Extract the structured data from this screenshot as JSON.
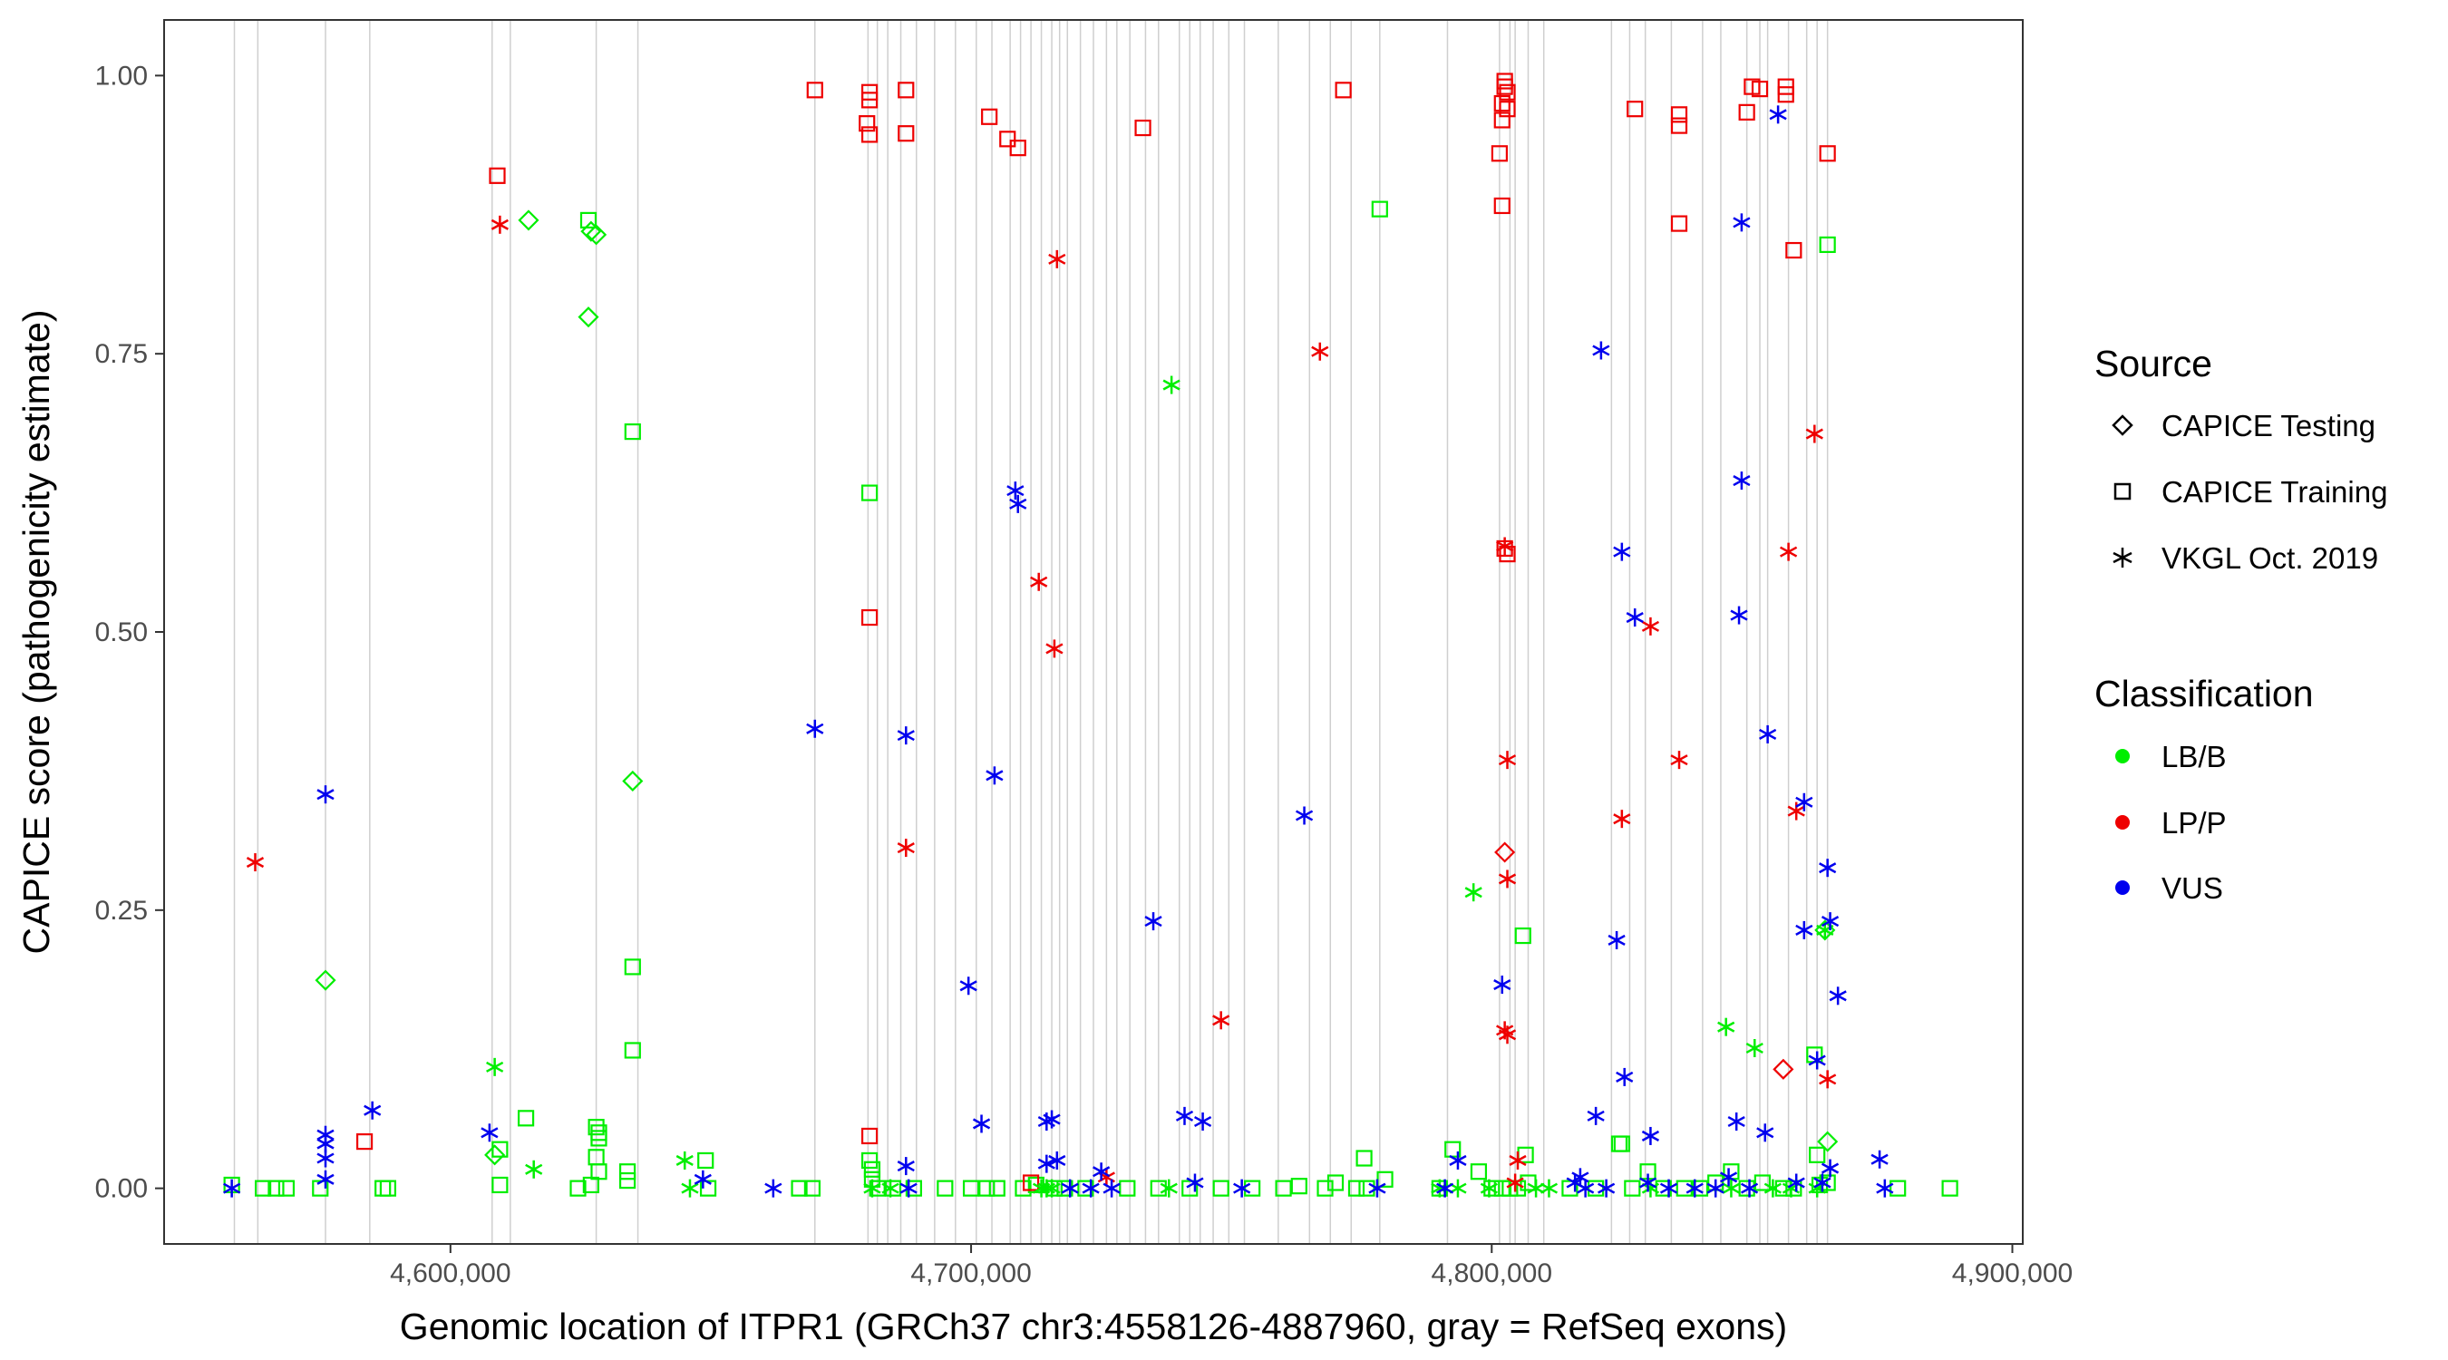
{
  "chart_data": {
    "type": "scatter",
    "title": "",
    "xlabel": "Genomic location of ITPR1 (GRCh37 chr3:4558126-4887960, gray = RefSeq exons)",
    "ylabel": "CAPICE score (pathogenicity estimate)",
    "xlim": [
      4545000,
      4902000
    ],
    "ylim": [
      -0.05,
      1.05
    ],
    "x_ticks": [
      4600000,
      4700000,
      4800000,
      4900000
    ],
    "x_tick_labels": [
      "4,600,000",
      "4,700,000",
      "4,800,000",
      "4,900,000"
    ],
    "y_ticks": [
      0,
      0.25,
      0.5,
      0.75,
      1
    ],
    "y_tick_labels": [
      "0.00",
      "0.25",
      "0.50",
      "0.75",
      "1.00"
    ],
    "grid": false,
    "legend_position": "right",
    "exons": [
      4558500,
      4563000,
      4576000,
      4584500,
      4608000,
      4611500,
      4628000,
      4636000,
      4670000,
      4680200,
      4682000,
      4684000,
      4686500,
      4689500,
      4693000,
      4697000,
      4701000,
      4704000,
      4707500,
      4709500,
      4711500,
      4713500,
      4715500,
      4717000,
      4718500,
      4721000,
      4723500,
      4726000,
      4728000,
      4730500,
      4733500,
      4736000,
      4740000,
      4742000,
      4744000,
      4746500,
      4749500,
      4752500,
      4759000,
      4765000,
      4769000,
      4773000,
      4778500,
      4791500,
      4801500,
      4803500,
      4804500,
      4807000,
      4810000,
      4823000,
      4826500,
      4829500,
      4834500,
      4840500,
      4844000,
      4849000,
      4851500,
      4853000,
      4857000,
      4860500,
      4862500,
      4864500
    ],
    "legend": {
      "source_title": "Source",
      "source_items": [
        {
          "label": "CAPICE Testing",
          "shape": "diamond"
        },
        {
          "label": "CAPICE Training",
          "shape": "square"
        },
        {
          "label": "VKGL Oct. 2019",
          "shape": "asterisk"
        }
      ],
      "class_title": "Classification",
      "class_items": [
        {
          "label": "LB/B",
          "color": "#00ee00"
        },
        {
          "label": "LP/P",
          "color": "#ee0000"
        },
        {
          "label": "VUS",
          "color": "#0000ee"
        }
      ]
    },
    "series": [
      {
        "name": "CAPICE Testing",
        "classification": "LB/B",
        "shape": "diamond",
        "color": "#00ee00",
        "points": [
          [
            4576000,
            0.187
          ],
          [
            4608500,
            0.03
          ],
          [
            4615000,
            0.87
          ],
          [
            4626500,
            0.783
          ],
          [
            4627000,
            0.86
          ],
          [
            4628000,
            0.857
          ],
          [
            4635000,
            0.366
          ],
          [
            4864500,
            0.042
          ],
          [
            4864000,
            0.232
          ]
        ]
      },
      {
        "name": "CAPICE Testing",
        "classification": "LP/P",
        "shape": "diamond",
        "color": "#ee0000",
        "points": [
          [
            4802500,
            0.302
          ],
          [
            4856000,
            0.107
          ]
        ]
      },
      {
        "name": "CAPICE Training",
        "classification": "LB/B",
        "shape": "square",
        "color": "#00ee00",
        "points": [
          [
            4558000,
            0.003
          ],
          [
            4564000,
            0
          ],
          [
            4566500,
            0
          ],
          [
            4568500,
            0
          ],
          [
            4575000,
            0
          ],
          [
            4587000,
            0
          ],
          [
            4588000,
            0
          ],
          [
            4609500,
            0.035
          ],
          [
            4609500,
            0.003
          ],
          [
            4614500,
            0.063
          ],
          [
            4624500,
            0
          ],
          [
            4626500,
            0.87
          ],
          [
            4627000,
            0.003
          ],
          [
            4628000,
            0.055
          ],
          [
            4628500,
            0.05
          ],
          [
            4628500,
            0.045
          ],
          [
            4628000,
            0.028
          ],
          [
            4628500,
            0.015
          ],
          [
            4634000,
            0.015
          ],
          [
            4634000,
            0.007
          ],
          [
            4635000,
            0.68
          ],
          [
            4635000,
            0.199
          ],
          [
            4635000,
            0.124
          ],
          [
            4649000,
            0.025
          ],
          [
            4649500,
            0
          ],
          [
            4667000,
            0
          ],
          [
            4669500,
            0
          ],
          [
            4680500,
            0.625
          ],
          [
            4680500,
            0.025
          ],
          [
            4681000,
            0.017
          ],
          [
            4681000,
            0.008
          ],
          [
            4682000,
            0
          ],
          [
            4685000,
            0
          ],
          [
            4689000,
            0
          ],
          [
            4695000,
            0
          ],
          [
            4700000,
            0
          ],
          [
            4703000,
            0
          ],
          [
            4705000,
            0
          ],
          [
            4710000,
            0
          ],
          [
            4712500,
            0.003
          ],
          [
            4716000,
            0
          ],
          [
            4718000,
            0
          ],
          [
            4722000,
            0
          ],
          [
            4730000,
            0
          ],
          [
            4736000,
            0
          ],
          [
            4742000,
            0
          ],
          [
            4748000,
            0
          ],
          [
            4754000,
            0
          ],
          [
            4760000,
            0
          ],
          [
            4763000,
            0.002
          ],
          [
            4768000,
            0
          ],
          [
            4770000,
            0.005
          ],
          [
            4774000,
            0
          ],
          [
            4775500,
            0.027
          ],
          [
            4776000,
            0
          ],
          [
            4779500,
            0.008
          ],
          [
            4778500,
            0.88
          ],
          [
            4790000,
            0
          ],
          [
            4792500,
            0.035
          ],
          [
            4797500,
            0.015
          ],
          [
            4800000,
            0
          ],
          [
            4802000,
            0
          ],
          [
            4803500,
            0
          ],
          [
            4805000,
            0
          ],
          [
            4806000,
            0.227
          ],
          [
            4806500,
            0.03
          ],
          [
            4807000,
            0.005
          ],
          [
            4815000,
            0
          ],
          [
            4820000,
            0
          ],
          [
            4824500,
            0.04
          ],
          [
            4825000,
            0.04
          ],
          [
            4827000,
            0
          ],
          [
            4830000,
            0.015
          ],
          [
            4833000,
            0
          ],
          [
            4837000,
            0
          ],
          [
            4840000,
            0
          ],
          [
            4843000,
            0.005
          ],
          [
            4846000,
            0.015
          ],
          [
            4849000,
            0
          ],
          [
            4852000,
            0.005
          ],
          [
            4856000,
            0
          ],
          [
            4858000,
            0
          ],
          [
            4862000,
            0.12
          ],
          [
            4862500,
            0.03
          ],
          [
            4863000,
            0.003
          ],
          [
            4864500,
            0.848
          ],
          [
            4864500,
            0.005
          ],
          [
            4878000,
            0
          ],
          [
            4888000,
            0
          ]
        ]
      },
      {
        "name": "CAPICE Training",
        "classification": "LP/P",
        "shape": "square",
        "color": "#ee0000",
        "points": [
          [
            4609000,
            0.91
          ],
          [
            4583500,
            0.042
          ],
          [
            4670000,
            0.987
          ],
          [
            4680500,
            0.985
          ],
          [
            4680500,
            0.978
          ],
          [
            4680000,
            0.957
          ],
          [
            4680500,
            0.947
          ],
          [
            4680500,
            0.513
          ],
          [
            4680500,
            0.047
          ],
          [
            4687500,
            0.987
          ],
          [
            4687500,
            0.948
          ],
          [
            4703500,
            0.963
          ],
          [
            4707000,
            0.943
          ],
          [
            4709000,
            0.935
          ],
          [
            4711500,
            0.005
          ],
          [
            4733000,
            0.953
          ],
          [
            4771500,
            0.987
          ],
          [
            4802500,
            0.995
          ],
          [
            4802500,
            0.99
          ],
          [
            4803000,
            0.985
          ],
          [
            4802000,
            0.975
          ],
          [
            4803000,
            0.97
          ],
          [
            4802000,
            0.96
          ],
          [
            4801500,
            0.93
          ],
          [
            4802000,
            0.883
          ],
          [
            4802500,
            0.575
          ],
          [
            4803000,
            0.57
          ],
          [
            4827500,
            0.97
          ],
          [
            4836000,
            0.965
          ],
          [
            4836000,
            0.955
          ],
          [
            4836000,
            0.867
          ],
          [
            4849000,
            0.967
          ],
          [
            4850000,
            0.99
          ],
          [
            4851500,
            0.988
          ],
          [
            4856500,
            0.99
          ],
          [
            4856500,
            0.983
          ],
          [
            4858000,
            0.843
          ],
          [
            4864500,
            0.93
          ]
        ]
      },
      {
        "name": "VKGL Oct. 2019",
        "classification": "LB/B",
        "shape": "asterisk",
        "color": "#00ee00",
        "points": [
          [
            4608500,
            0.109
          ],
          [
            4616000,
            0.017
          ],
          [
            4645000,
            0.025
          ],
          [
            4646000,
            0
          ],
          [
            4681000,
            0
          ],
          [
            4684500,
            0
          ],
          [
            4713500,
            0
          ],
          [
            4714500,
            0
          ],
          [
            4715500,
            0
          ],
          [
            4738500,
            0.722
          ],
          [
            4738000,
            0
          ],
          [
            4790000,
            0
          ],
          [
            4793500,
            0
          ],
          [
            4796500,
            0.266
          ],
          [
            4799500,
            0
          ],
          [
            4808500,
            0
          ],
          [
            4811000,
            0
          ],
          [
            4830500,
            0
          ],
          [
            4845000,
            0.145
          ],
          [
            4846000,
            0
          ],
          [
            4850500,
            0.126
          ],
          [
            4854000,
            0
          ],
          [
            4857500,
            0
          ],
          [
            4862500,
            0
          ],
          [
            4864000,
            0.232
          ]
        ]
      },
      {
        "name": "VKGL Oct. 2019",
        "classification": "LP/P",
        "shape": "asterisk",
        "color": "#ee0000",
        "points": [
          [
            4562500,
            0.293
          ],
          [
            4609500,
            0.866
          ],
          [
            4687500,
            0.306
          ],
          [
            4713000,
            0.545
          ],
          [
            4716500,
            0.835
          ],
          [
            4716000,
            0.485
          ],
          [
            4726000,
            0.01
          ],
          [
            4748000,
            0.151
          ],
          [
            4767000,
            0.752
          ],
          [
            4802500,
            0.577
          ],
          [
            4803000,
            0.385
          ],
          [
            4803000,
            0.278
          ],
          [
            4802500,
            0.142
          ],
          [
            4803000,
            0.138
          ],
          [
            4805000,
            0.025
          ],
          [
            4804500,
            0.005
          ],
          [
            4825000,
            0.332
          ],
          [
            4830500,
            0.505
          ],
          [
            4836000,
            0.385
          ],
          [
            4857000,
            0.572
          ],
          [
            4858500,
            0.339
          ],
          [
            4862000,
            0.678
          ],
          [
            4864500,
            0.098
          ]
        ]
      },
      {
        "name": "VKGL Oct. 2019",
        "classification": "VUS",
        "shape": "asterisk",
        "color": "#0000ee",
        "points": [
          [
            4558000,
            0
          ],
          [
            4576000,
            0.354
          ],
          [
            4576000,
            0.048
          ],
          [
            4576000,
            0.04
          ],
          [
            4576000,
            0.027
          ],
          [
            4576000,
            0.008
          ],
          [
            4585000,
            0.07
          ],
          [
            4607500,
            0.05
          ],
          [
            4648500,
            0.008
          ],
          [
            4662000,
            0
          ],
          [
            4670000,
            0.413
          ],
          [
            4687500,
            0.407
          ],
          [
            4687500,
            0.02
          ],
          [
            4688000,
            0
          ],
          [
            4699500,
            0.182
          ],
          [
            4702000,
            0.058
          ],
          [
            4704500,
            0.371
          ],
          [
            4708500,
            0.627
          ],
          [
            4709000,
            0.615
          ],
          [
            4714500,
            0.06
          ],
          [
            4715500,
            0.062
          ],
          [
            4714500,
            0.022
          ],
          [
            4716500,
            0.025
          ],
          [
            4719000,
            0
          ],
          [
            4723000,
            0
          ],
          [
            4725000,
            0.015
          ],
          [
            4727000,
            0
          ],
          [
            4735000,
            0.24
          ],
          [
            4741000,
            0.065
          ],
          [
            4743000,
            0.005
          ],
          [
            4744500,
            0.06
          ],
          [
            4752000,
            0
          ],
          [
            4764000,
            0.335
          ],
          [
            4778000,
            0
          ],
          [
            4791000,
            0
          ],
          [
            4793500,
            0.025
          ],
          [
            4802000,
            0.183
          ],
          [
            4816000,
            0.005
          ],
          [
            4817000,
            0.01
          ],
          [
            4818000,
            0
          ],
          [
            4820000,
            0.065
          ],
          [
            4821000,
            0.753
          ],
          [
            4822000,
            0
          ],
          [
            4824000,
            0.223
          ],
          [
            4825000,
            0.572
          ],
          [
            4825500,
            0.1
          ],
          [
            4827500,
            0.513
          ],
          [
            4830500,
            0.047
          ],
          [
            4830000,
            0.005
          ],
          [
            4834000,
            0
          ],
          [
            4839000,
            0
          ],
          [
            4843000,
            0
          ],
          [
            4845500,
            0.01
          ],
          [
            4847000,
            0.06
          ],
          [
            4847500,
            0.515
          ],
          [
            4848000,
            0.636
          ],
          [
            4848000,
            0.868
          ],
          [
            4849500,
            0
          ],
          [
            4852500,
            0.05
          ],
          [
            4853000,
            0.408
          ],
          [
            4855000,
            0.965
          ],
          [
            4858500,
            0.005
          ],
          [
            4860000,
            0.347
          ],
          [
            4860000,
            0.232
          ],
          [
            4862500,
            0.115
          ],
          [
            4863500,
            0.005
          ],
          [
            4864500,
            0.288
          ],
          [
            4865000,
            0.24
          ],
          [
            4865000,
            0.018
          ],
          [
            4866500,
            0.173
          ],
          [
            4874500,
            0.026
          ],
          [
            4875500,
            0
          ]
        ]
      }
    ]
  }
}
